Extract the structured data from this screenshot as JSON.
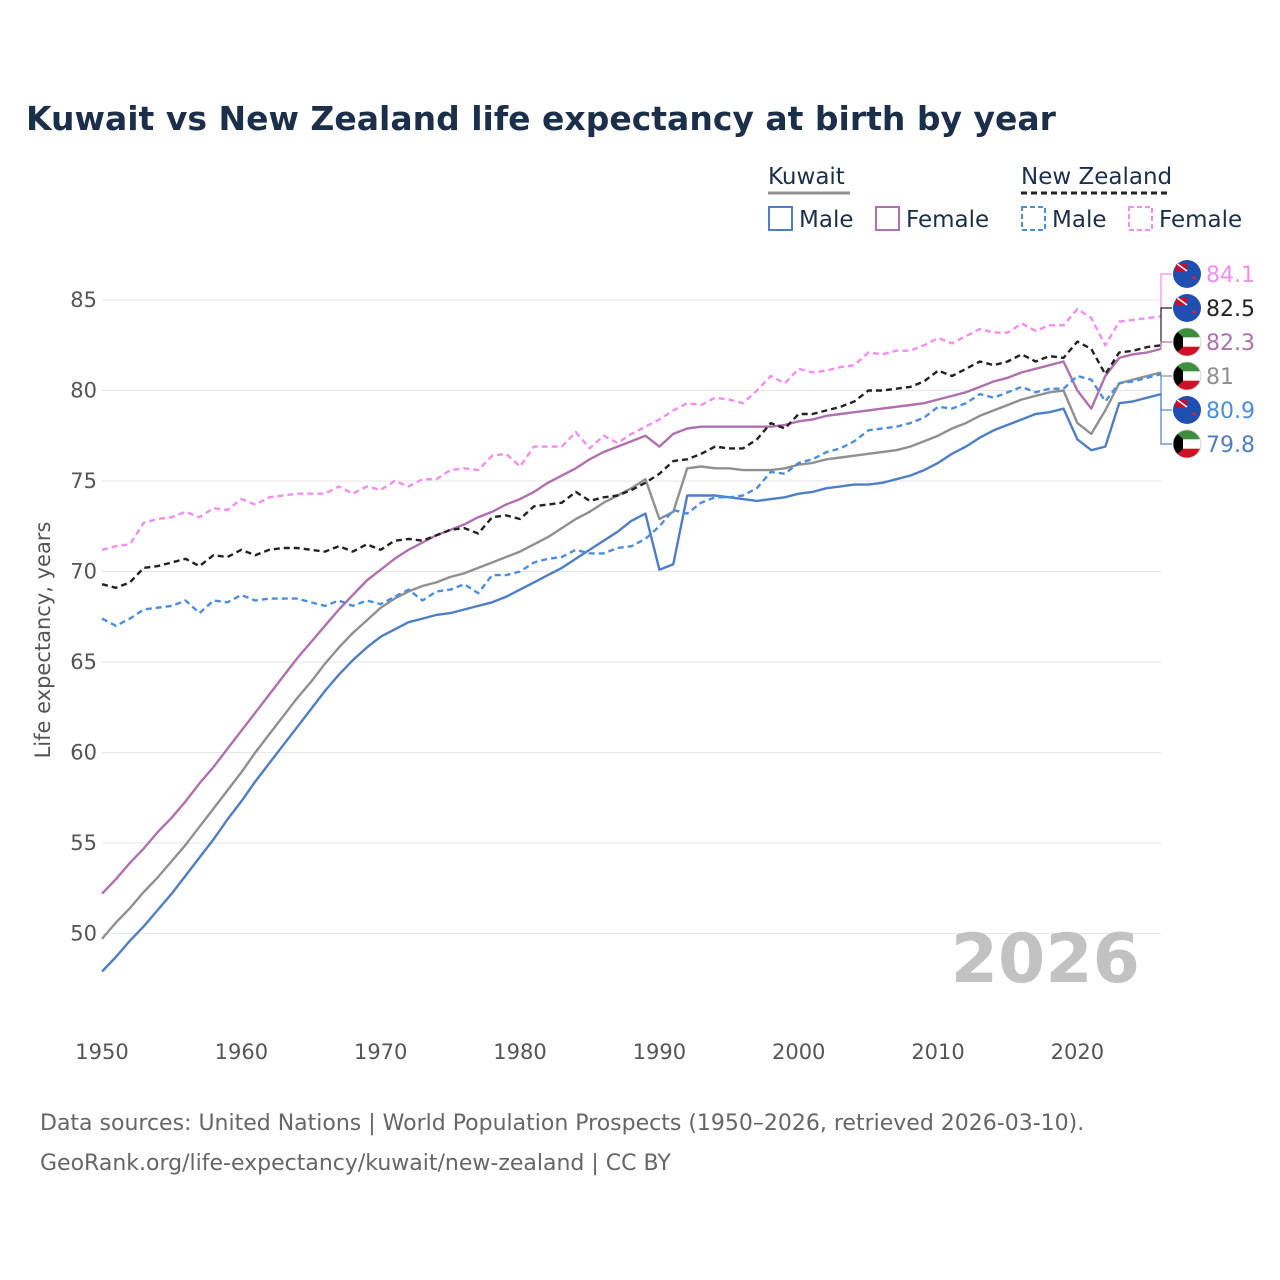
{
  "title": "Kuwait vs New Zealand life expectancy at birth by year",
  "legend": {
    "groups": [
      {
        "name": "Kuwait",
        "key": "kw",
        "items": [
          {
            "label": "Male",
            "key": "kw_m"
          },
          {
            "label": "Female",
            "key": "kw_f"
          }
        ]
      },
      {
        "name": "New Zealand",
        "key": "nz",
        "items": [
          {
            "label": "Male",
            "key": "nz_m"
          },
          {
            "label": "Female",
            "key": "nz_f"
          }
        ]
      }
    ]
  },
  "year_label": "2026",
  "source_line1": "Data sources: United Nations | World Population Prospects (1950–2026, retrieved 2026-03-10).",
  "source_line2": "GeoRank.org/life-expectancy/kuwait/new-zealand | CC BY",
  "colors": {
    "kw": "#909090",
    "kw_m": "#4e7ec5",
    "kw_f": "#b070b0",
    "nz": "#222222",
    "nz_m": "#4a8ee0",
    "nz_f": "#f38ef0",
    "grid": "#e6e6e6",
    "title": "#1b2f4b"
  },
  "chart_data": {
    "type": "line",
    "title": "Kuwait vs New Zealand life expectancy at birth by year",
    "xlabel": "",
    "ylabel": "Life expectancy, years",
    "xlim": [
      1950,
      2026
    ],
    "ylim": [
      46.5,
      86.5
    ],
    "xticks": [
      1950,
      1960,
      1970,
      1980,
      1990,
      2000,
      2010,
      2020
    ],
    "yticks": [
      50,
      55,
      60,
      65,
      70,
      75,
      80,
      85
    ],
    "grid": true,
    "legend_position": "top-right",
    "x": [
      1950,
      1951,
      1952,
      1953,
      1954,
      1955,
      1956,
      1957,
      1958,
      1959,
      1960,
      1961,
      1962,
      1963,
      1964,
      1965,
      1966,
      1967,
      1968,
      1969,
      1970,
      1971,
      1972,
      1973,
      1974,
      1975,
      1976,
      1977,
      1978,
      1979,
      1980,
      1981,
      1982,
      1983,
      1984,
      1985,
      1986,
      1987,
      1988,
      1989,
      1990,
      1991,
      1992,
      1993,
      1994,
      1995,
      1996,
      1997,
      1998,
      1999,
      2000,
      2001,
      2002,
      2003,
      2004,
      2005,
      2006,
      2007,
      2008,
      2009,
      2010,
      2011,
      2012,
      2013,
      2014,
      2015,
      2016,
      2017,
      2018,
      2019,
      2020,
      2021,
      2022,
      2023,
      2024,
      2025,
      2026
    ],
    "series": [
      {
        "name": "New Zealand Female",
        "key": "nz_f",
        "country": "New Zealand",
        "sex": "Female",
        "dashed": true,
        "end_value": "84.1",
        "values": [
          71.2,
          71.4,
          71.5,
          72.7,
          72.9,
          73.0,
          73.3,
          73.0,
          73.5,
          73.4,
          74.0,
          73.7,
          74.1,
          74.2,
          74.3,
          74.3,
          74.3,
          74.7,
          74.3,
          74.7,
          74.5,
          75.0,
          74.7,
          75.1,
          75.1,
          75.6,
          75.7,
          75.6,
          76.4,
          76.5,
          75.8,
          76.9,
          76.9,
          76.9,
          77.7,
          76.8,
          77.5,
          77.1,
          77.6,
          78.0,
          78.4,
          78.9,
          79.3,
          79.2,
          79.6,
          79.5,
          79.3,
          80.0,
          80.8,
          80.4,
          81.2,
          81.0,
          81.1,
          81.3,
          81.4,
          82.1,
          82.0,
          82.2,
          82.2,
          82.5,
          82.9,
          82.6,
          83.0,
          83.4,
          83.2,
          83.2,
          83.7,
          83.3,
          83.6,
          83.6,
          84.5,
          84.0,
          82.5,
          83.8,
          83.9,
          84.0,
          84.1
        ]
      },
      {
        "name": "New Zealand",
        "key": "nz",
        "country": "New Zealand",
        "sex": "Total",
        "dashed": true,
        "end_value": "82.5",
        "values": [
          69.3,
          69.1,
          69.4,
          70.2,
          70.3,
          70.5,
          70.7,
          70.3,
          70.9,
          70.8,
          71.2,
          70.9,
          71.2,
          71.3,
          71.3,
          71.2,
          71.1,
          71.4,
          71.1,
          71.5,
          71.2,
          71.7,
          71.8,
          71.7,
          72.0,
          72.3,
          72.4,
          72.1,
          73.0,
          73.1,
          72.9,
          73.6,
          73.7,
          73.8,
          74.4,
          73.9,
          74.1,
          74.2,
          74.5,
          74.9,
          75.4,
          76.1,
          76.2,
          76.5,
          76.9,
          76.8,
          76.8,
          77.3,
          78.2,
          77.9,
          78.7,
          78.7,
          78.9,
          79.1,
          79.4,
          80.0,
          80.0,
          80.1,
          80.2,
          80.5,
          81.1,
          80.8,
          81.2,
          81.6,
          81.4,
          81.6,
          82.0,
          81.6,
          81.9,
          81.8,
          82.7,
          82.3,
          80.9,
          82.1,
          82.2,
          82.4,
          82.5
        ]
      },
      {
        "name": "Kuwait Female",
        "key": "kw_f",
        "country": "Kuwait",
        "sex": "Female",
        "dashed": false,
        "end_value": "82.3",
        "values": [
          52.2,
          53.0,
          53.9,
          54.7,
          55.6,
          56.4,
          57.3,
          58.3,
          59.2,
          60.2,
          61.2,
          62.2,
          63.2,
          64.2,
          65.2,
          66.1,
          67.0,
          67.9,
          68.7,
          69.5,
          70.1,
          70.7,
          71.2,
          71.6,
          72.0,
          72.3,
          72.6,
          73.0,
          73.3,
          73.7,
          74.0,
          74.4,
          74.9,
          75.3,
          75.7,
          76.2,
          76.6,
          76.9,
          77.2,
          77.5,
          76.9,
          77.6,
          77.9,
          78.0,
          78.0,
          78.0,
          78.0,
          78.0,
          78.0,
          78.1,
          78.3,
          78.4,
          78.6,
          78.7,
          78.8,
          78.9,
          79.0,
          79.1,
          79.2,
          79.3,
          79.5,
          79.7,
          79.9,
          80.2,
          80.5,
          80.7,
          81.0,
          81.2,
          81.4,
          81.6,
          80.0,
          79.0,
          80.8,
          81.8,
          82.0,
          82.1,
          82.3
        ]
      },
      {
        "name": "Kuwait",
        "key": "kw",
        "country": "Kuwait",
        "sex": "Total",
        "dashed": false,
        "end_value": "81",
        "values": [
          49.7,
          50.6,
          51.4,
          52.3,
          53.1,
          54.0,
          54.9,
          55.9,
          56.9,
          57.9,
          58.9,
          60.0,
          61.0,
          62.0,
          63.0,
          63.9,
          64.9,
          65.8,
          66.6,
          67.3,
          68.0,
          68.5,
          68.9,
          69.2,
          69.4,
          69.7,
          69.9,
          70.2,
          70.5,
          70.8,
          71.1,
          71.5,
          71.9,
          72.4,
          72.9,
          73.3,
          73.8,
          74.2,
          74.6,
          75.1,
          72.9,
          73.3,
          75.7,
          75.8,
          75.7,
          75.7,
          75.6,
          75.6,
          75.6,
          75.7,
          75.9,
          76.0,
          76.2,
          76.3,
          76.4,
          76.5,
          76.6,
          76.7,
          76.9,
          77.2,
          77.5,
          77.9,
          78.2,
          78.6,
          78.9,
          79.2,
          79.5,
          79.7,
          79.9,
          80.0,
          78.2,
          77.6,
          78.9,
          80.4,
          80.6,
          80.8,
          81.0
        ]
      },
      {
        "name": "New Zealand Male",
        "key": "nz_m",
        "country": "New Zealand",
        "sex": "Male",
        "dashed": true,
        "end_value": "80.9",
        "values": [
          67.4,
          67.0,
          67.4,
          67.9,
          68.0,
          68.1,
          68.4,
          67.7,
          68.4,
          68.3,
          68.7,
          68.4,
          68.5,
          68.5,
          68.5,
          68.3,
          68.1,
          68.4,
          68.1,
          68.4,
          68.2,
          68.6,
          69.0,
          68.4,
          68.9,
          69.0,
          69.3,
          68.8,
          69.8,
          69.8,
          70.0,
          70.5,
          70.7,
          70.8,
          71.2,
          71.0,
          71.0,
          71.3,
          71.4,
          71.8,
          72.5,
          73.4,
          73.2,
          73.8,
          74.1,
          74.1,
          74.2,
          74.6,
          75.5,
          75.4,
          76.0,
          76.2,
          76.6,
          76.8,
          77.2,
          77.8,
          77.9,
          78.0,
          78.2,
          78.5,
          79.1,
          79.0,
          79.3,
          79.8,
          79.6,
          79.9,
          80.2,
          79.9,
          80.1,
          80.1,
          80.8,
          80.6,
          79.4,
          80.4,
          80.5,
          80.7,
          80.9
        ]
      },
      {
        "name": "Kuwait Male",
        "key": "kw_m",
        "country": "Kuwait",
        "sex": "Male",
        "dashed": false,
        "end_value": "79.8",
        "values": [
          47.9,
          48.7,
          49.6,
          50.4,
          51.3,
          52.2,
          53.2,
          54.2,
          55.2,
          56.3,
          57.3,
          58.4,
          59.4,
          60.4,
          61.4,
          62.4,
          63.4,
          64.3,
          65.1,
          65.8,
          66.4,
          66.8,
          67.2,
          67.4,
          67.6,
          67.7,
          67.9,
          68.1,
          68.3,
          68.6,
          69.0,
          69.4,
          69.8,
          70.2,
          70.7,
          71.2,
          71.7,
          72.2,
          72.8,
          73.2,
          70.1,
          70.4,
          74.2,
          74.2,
          74.2,
          74.1,
          74.0,
          73.9,
          74.0,
          74.1,
          74.3,
          74.4,
          74.6,
          74.7,
          74.8,
          74.8,
          74.9,
          75.1,
          75.3,
          75.6,
          76.0,
          76.5,
          76.9,
          77.4,
          77.8,
          78.1,
          78.4,
          78.7,
          78.8,
          79.0,
          77.3,
          76.7,
          76.9,
          79.3,
          79.4,
          79.6,
          79.8
        ]
      }
    ]
  }
}
